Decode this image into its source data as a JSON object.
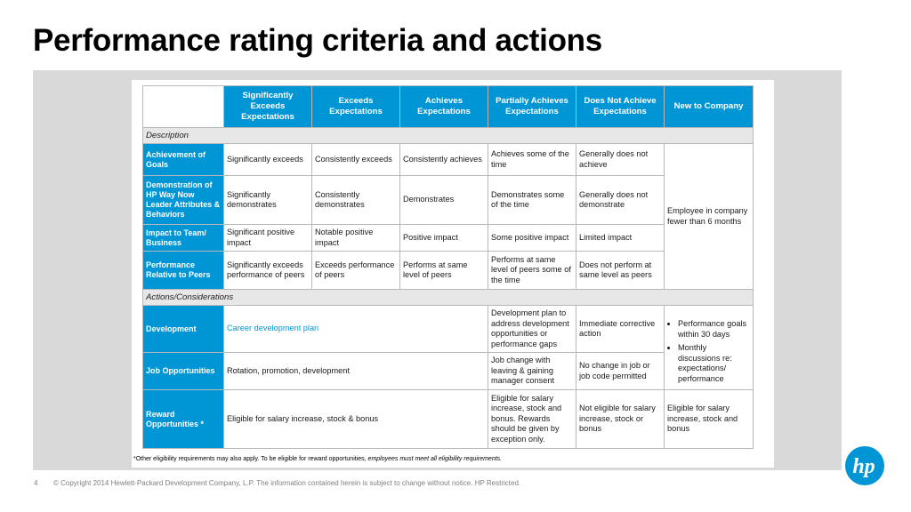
{
  "title": "Performance rating criteria and actions",
  "columns": [
    "Significantly Exceeds Expectations",
    "Exceeds Expectations",
    "Achieves Expectations",
    "Partially Achieves Expectations",
    "Does Not Achieve Expectations",
    "New to Company"
  ],
  "sections": {
    "description": "Description",
    "actions": "Actions/Considerations"
  },
  "description_rows": [
    {
      "label": "Achievement of Goals",
      "cells": [
        "Significantly exceeds",
        "Consistently exceeds",
        "Consistently achieves",
        "Achieves some of the time",
        "Generally does not achieve"
      ]
    },
    {
      "label": "Demonstration of HP Way Now Leader Attributes & Behaviors",
      "cells": [
        "Significantly demonstrates",
        "Consistently demonstrates",
        "Demonstrates",
        "Demonstrates some of the time",
        "Generally does not demonstrate"
      ]
    },
    {
      "label": "Impact to Team/ Business",
      "cells": [
        "Significant positive impact",
        "Notable positive impact",
        "Positive impact",
        "Some positive impact",
        "Limited impact"
      ]
    },
    {
      "label": "Performance Relative to Peers",
      "cells": [
        "Significantly exceeds performance of peers",
        "Exceeds performance of peers",
        "Performs at same level of peers",
        "Performs at same level of peers some of the time",
        "Does not perform at same level as peers"
      ]
    }
  ],
  "new_to_company_description": "Employee in company fewer than 6 months",
  "actions_rows": {
    "development": {
      "label": "Development",
      "span_text": "Career development plan",
      "partial": "Development plan to address development opportunities or performance gaps",
      "does_not": "Immediate corrective action",
      "new_bullets": [
        "Performance goals within 30 days",
        "Monthly discussions re: expectations/ performance"
      ]
    },
    "job": {
      "label": "Job Opportunities",
      "span_text": "Rotation, promotion, development",
      "partial": "Job change with leaving & gaining manager consent",
      "does_not": "No change in job or job code permitted"
    },
    "reward": {
      "label": "Reward Opportunities *",
      "span_text": "Eligible for salary increase, stock & bonus",
      "partial": "Eligible for salary increase, stock and bonus. Rewards should be given by exception only.",
      "does_not": "Not eligible for salary increase, stock or bonus",
      "new": "Eligible for salary increase, stock and bonus"
    }
  },
  "footnote": {
    "normal": "*Other eligibility requirements may also apply. To be eligible for reward opportunities, ",
    "italic": "employees must meet all eligibility requirements."
  },
  "footer": {
    "page_number": "4",
    "copyright": "© Copyright 2014 Hewlett-Packard Development Company, L.P.  The information contained herein is subject to change without notice. HP Restricted."
  },
  "logo": {
    "text": "hp",
    "color": "#0096d6"
  },
  "colors": {
    "header_blue": "#0096d6",
    "section_gray": "#e7e7e7",
    "panel_gray": "#d9d9d9"
  }
}
